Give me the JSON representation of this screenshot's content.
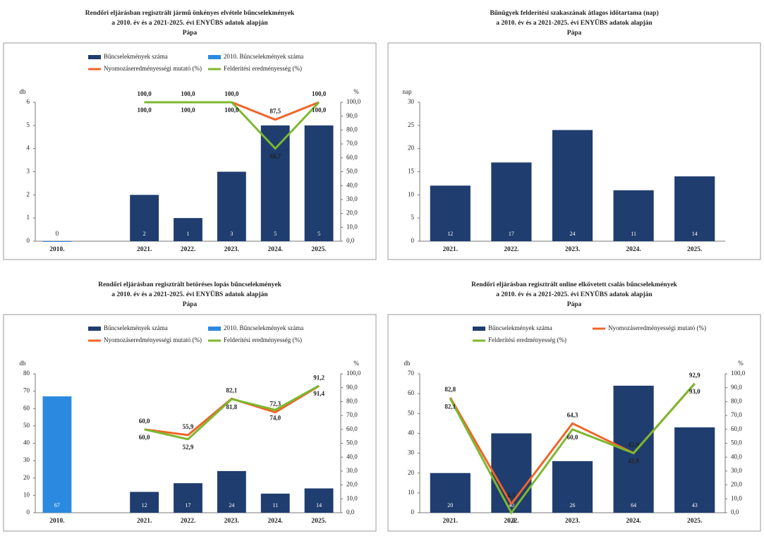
{
  "chart_data": [
    {
      "type": "bar",
      "title": "Rendőri eljárásban regisztrált jármű önkényes elvétele bűncselekmények",
      "subtitle": "a 2010. év és a 2021-2025. évi ENYÜBS adatok alapján",
      "location": "Pápa",
      "ylabel": "db",
      "y2label": "%",
      "categories": [
        "2010.",
        null,
        "2021.",
        "2022.",
        "2023.",
        "2024.",
        "2025."
      ],
      "series": [
        {
          "name": "Bűncselekmények száma",
          "type": "bar",
          "color": "#1f3d6e",
          "values": [
            null,
            null,
            2,
            1,
            3,
            5,
            5
          ]
        },
        {
          "name": "2010. Bűncselekmények száma",
          "type": "bar",
          "color": "#2b8ae0",
          "values": [
            0,
            null,
            null,
            null,
            null,
            null,
            null
          ]
        },
        {
          "name": "Nyomozáseredményességi mutató (%)",
          "type": "line",
          "axis": "y2",
          "color": "#f0642a",
          "values": [
            null,
            null,
            100,
            100,
            100,
            87.5,
            100
          ],
          "value_labels": [
            null,
            null,
            "100,0",
            "100,0",
            "100,0",
            "87,5",
            "100,0"
          ]
        },
        {
          "name": "Felderítési eredményesség (%)",
          "type": "line",
          "axis": "y2",
          "color": "#7cb82f",
          "values": [
            null,
            null,
            100,
            100,
            100,
            66.7,
            100
          ],
          "value_labels": [
            null,
            null,
            "100,0",
            "100,0",
            "100,0",
            "66,7",
            "100,0"
          ]
        }
      ],
      "ylim": [
        0,
        6
      ],
      "yticks": [
        0,
        1,
        2,
        3,
        4,
        5,
        6
      ],
      "y2lim": [
        0,
        100
      ],
      "y2ticks": [
        {
          "value": 0,
          "label": "0,0"
        },
        {
          "value": 10,
          "label": "10,0"
        },
        {
          "value": 20,
          "label": "20,0"
        },
        {
          "value": 30,
          "label": "30,0"
        },
        {
          "value": 40,
          "label": "40,0"
        },
        {
          "value": 50,
          "label": "50,0"
        },
        {
          "value": 60,
          "label": "60,0"
        },
        {
          "value": 70,
          "label": "70,0"
        },
        {
          "value": 80,
          "label": "80,0"
        },
        {
          "value": 90,
          "label": "90,0"
        },
        {
          "value": 100,
          "label": "100,0"
        }
      ]
    },
    {
      "type": "bar",
      "title": "Bűnügyek felderítési szakaszának átlagos időtartama (nap)",
      "subtitle": "a 2010. év és a 2021-2025. évi ENYÜBS adatok alapján",
      "location": "Pápa",
      "ylabel": "nap",
      "categories": [
        "2021.",
        "2022.",
        "2023.",
        "2024.",
        "2025."
      ],
      "series": [
        {
          "type": "bar",
          "color": "#1f3d6e",
          "values": [
            12,
            17,
            24,
            11,
            14
          ]
        }
      ],
      "ylim": [
        0,
        30
      ],
      "yticks": [
        0,
        5,
        10,
        15,
        20,
        25,
        30
      ]
    },
    {
      "type": "bar",
      "title": "Rendőri eljárásban regisztrált betöréses lopás bűncselekmények",
      "subtitle": "a 2010. év és a 2021-2025. évi ENYÜBS adatok alapján",
      "location": "Pápa",
      "ylabel": "db",
      "y2label": "%",
      "categories": [
        "2010.",
        null,
        "2021.",
        "2022.",
        "2023.",
        "2024.",
        "2025."
      ],
      "series": [
        {
          "name": "Bűncselekmények száma",
          "type": "bar",
          "color": "#1f3d6e",
          "values": [
            null,
            null,
            12,
            17,
            24,
            11,
            14
          ]
        },
        {
          "name": "2010. Bűncselekmények száma",
          "type": "bar",
          "color": "#2b8ae0",
          "values": [
            67,
            null,
            null,
            null,
            null,
            null,
            null
          ]
        },
        {
          "name": "Nyomozáseredményességi mutató (%)",
          "type": "line",
          "axis": "y2",
          "color": "#f0642a",
          "values": [
            null,
            null,
            60.0,
            55.9,
            82.1,
            72.3,
            91.2
          ],
          "value_labels": [
            null,
            null,
            "60,0",
            "55,9",
            "82,1",
            "72,3",
            "91,2"
          ]
        },
        {
          "name": "Felderítési eredményesség (%)",
          "type": "line",
          "axis": "y2",
          "color": "#7cb82f",
          "values": [
            null,
            null,
            60.0,
            52.9,
            81.8,
            74.0,
            91.4
          ],
          "value_labels": [
            null,
            null,
            "60,0",
            "52,9",
            "81,8",
            "74,0",
            "91,4"
          ]
        }
      ],
      "ylim": [
        0,
        80
      ],
      "yticks": [
        0,
        10,
        20,
        30,
        40,
        50,
        60,
        70,
        80
      ],
      "y2lim": [
        0,
        100
      ],
      "y2ticks": [
        {
          "value": 0,
          "label": "0,0"
        },
        {
          "value": 10,
          "label": "10,0"
        },
        {
          "value": 20,
          "label": "20,0"
        },
        {
          "value": 30,
          "label": "30,0"
        },
        {
          "value": 40,
          "label": "40,0"
        },
        {
          "value": 50,
          "label": "50,0"
        },
        {
          "value": 60,
          "label": "60,0"
        },
        {
          "value": 70,
          "label": "70,0"
        },
        {
          "value": 80,
          "label": "80,0"
        },
        {
          "value": 90,
          "label": "90,0"
        },
        {
          "value": 100,
          "label": "100,0"
        }
      ]
    },
    {
      "type": "bar",
      "title": "Rendőri eljárásban regisztrált online elkövetett csalás bűncselekmények",
      "subtitle": "a 2010. év és a 2021-2025. évi ENYÜBS adatok alapján",
      "location": "Pápa",
      "ylabel": "db",
      "y2label": "%",
      "categories": [
        "2021.",
        "2022.",
        "2023.",
        "2024.",
        "2025."
      ],
      "series": [
        {
          "name": "Bűncselekmények száma",
          "type": "bar",
          "color": "#1f3d6e",
          "values": [
            20,
            40,
            26,
            64,
            43
          ]
        },
        {
          "name": "Nyomozáseredményességi mutató (%)",
          "type": "line",
          "axis": "y2",
          "color": "#f0642a",
          "values": [
            82.8,
            6.3,
            64.3,
            42.9,
            92.9
          ],
          "value_labels": [
            "82,8",
            "6,3",
            "64,3",
            "42,9",
            "92,9"
          ]
        },
        {
          "name": "Felderítési eredményesség (%)",
          "type": "line",
          "axis": "y2",
          "color": "#7cb82f",
          "values": [
            82.1,
            0.0,
            60.0,
            42.9,
            93.0
          ],
          "value_labels": [
            "82,1",
            "0,0",
            "60,0",
            "42,9",
            "93,0"
          ]
        }
      ],
      "ylim": [
        0,
        70
      ],
      "yticks": [
        0,
        10,
        20,
        30,
        40,
        50,
        60,
        70
      ],
      "y2lim": [
        0,
        100
      ],
      "y2ticks": [
        {
          "value": 0,
          "label": "0,0"
        },
        {
          "value": 10,
          "label": "10,0"
        },
        {
          "value": 20,
          "label": "20,0"
        },
        {
          "value": 30,
          "label": "30,0"
        },
        {
          "value": 40,
          "label": "40,0"
        },
        {
          "value": 50,
          "label": "50,0"
        },
        {
          "value": 60,
          "label": "60,0"
        },
        {
          "value": 70,
          "label": "70,0"
        },
        {
          "value": 80,
          "label": "80,0"
        },
        {
          "value": 90,
          "label": "90,0"
        },
        {
          "value": 100,
          "label": "100,0"
        }
      ]
    }
  ]
}
